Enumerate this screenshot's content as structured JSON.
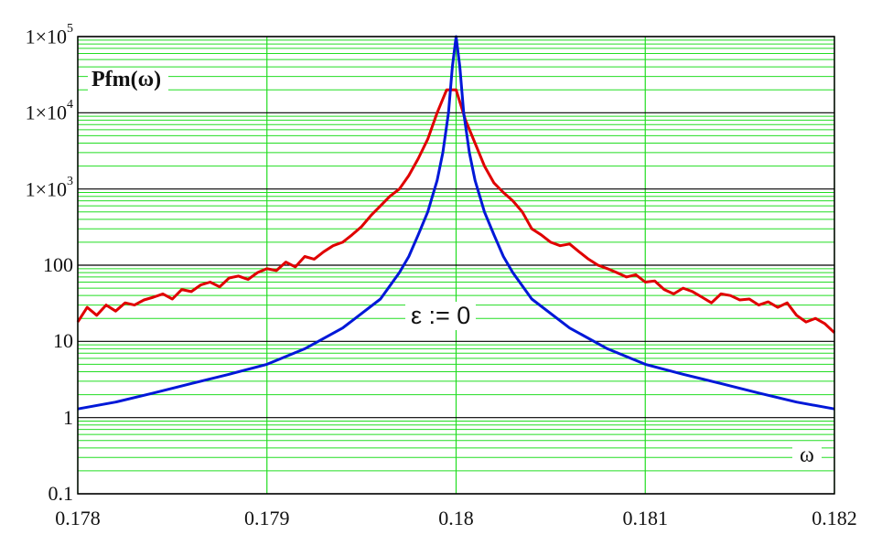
{
  "chart_data": {
    "type": "line",
    "ylabel": "Pfm(ω)",
    "xlabel": "ω",
    "annotation": "ε := 0",
    "yscale": "log",
    "xlim": [
      0.178,
      0.182
    ],
    "ylim": [
      0.1,
      100000
    ],
    "grid": true,
    "x_ticks": [
      "0.178",
      "0.179",
      "0.18",
      "0.181",
      "0.182"
    ],
    "y_ticks": [
      {
        "base": "0.1",
        "exp": ""
      },
      {
        "base": "1",
        "exp": ""
      },
      {
        "base": "10",
        "exp": ""
      },
      {
        "base": "100",
        "exp": ""
      },
      {
        "base": "1×10",
        "exp": "3"
      },
      {
        "base": "1×10",
        "exp": "4"
      },
      {
        "base": "1×10",
        "exp": "5"
      }
    ],
    "colors": {
      "series_red": "#e00000",
      "series_blue": "#0018d8",
      "grid_minor": "#22dd22",
      "grid_major": "#000000"
    },
    "series": [
      {
        "color": "#e00000",
        "x": [
          0.178,
          0.17805,
          0.1781,
          0.17815,
          0.1782,
          0.17825,
          0.1783,
          0.17835,
          0.1784,
          0.17845,
          0.1785,
          0.17855,
          0.1786,
          0.17865,
          0.1787,
          0.17875,
          0.1788,
          0.17885,
          0.1789,
          0.17895,
          0.179,
          0.17905,
          0.1791,
          0.17915,
          0.1792,
          0.17925,
          0.1793,
          0.17935,
          0.1794,
          0.17945,
          0.1795,
          0.17955,
          0.1796,
          0.17965,
          0.1797,
          0.17975,
          0.1798,
          0.17985,
          0.1799,
          0.17995,
          0.18,
          0.18005,
          0.1801,
          0.18015,
          0.1802,
          0.18025,
          0.1803,
          0.18035,
          0.1804,
          0.18045,
          0.1805,
          0.18055,
          0.1806,
          0.18065,
          0.1807,
          0.18075,
          0.1808,
          0.18085,
          0.1809,
          0.18095,
          0.181,
          0.18105,
          0.1811,
          0.18115,
          0.1812,
          0.18125,
          0.1813,
          0.18135,
          0.1814,
          0.18145,
          0.1815,
          0.18155,
          0.1816,
          0.18165,
          0.1817,
          0.18175,
          0.1818,
          0.18185,
          0.1819,
          0.18195,
          0.182
        ],
        "y": [
          18,
          28,
          22,
          30,
          25,
          32,
          30,
          35,
          38,
          42,
          36,
          48,
          45,
          55,
          60,
          52,
          68,
          72,
          65,
          80,
          90,
          85,
          110,
          95,
          130,
          120,
          150,
          180,
          200,
          250,
          320,
          450,
          600,
          800,
          1000,
          1500,
          2500,
          4500,
          10000,
          20000,
          20000,
          8000,
          4000,
          2000,
          1200,
          900,
          700,
          500,
          300,
          250,
          200,
          180,
          190,
          150,
          120,
          100,
          90,
          80,
          70,
          75,
          60,
          62,
          48,
          42,
          50,
          45,
          38,
          32,
          42,
          40,
          35,
          36,
          30,
          33,
          28,
          32,
          22,
          18,
          20,
          17,
          13
        ]
      },
      {
        "color": "#0018d8",
        "x": [
          0.178,
          0.1782,
          0.1784,
          0.1786,
          0.1788,
          0.179,
          0.1792,
          0.1794,
          0.1796,
          0.1797,
          0.17975,
          0.1798,
          0.17985,
          0.1799,
          0.17993,
          0.17996,
          0.17998,
          0.18,
          0.18002,
          0.18004,
          0.18007,
          0.1801,
          0.18015,
          0.1802,
          0.18025,
          0.1803,
          0.1804,
          0.1806,
          0.1808,
          0.181,
          0.1812,
          0.1814,
          0.1816,
          0.1818,
          0.182
        ],
        "y": [
          1.3,
          1.6,
          2.1,
          2.8,
          3.7,
          5,
          8,
          15,
          36,
          80,
          130,
          250,
          500,
          1300,
          3000,
          10000,
          40000,
          100000,
          40000,
          10000,
          3000,
          1300,
          500,
          250,
          130,
          80,
          36,
          15,
          8,
          5,
          3.7,
          2.8,
          2.1,
          1.6,
          1.3
        ]
      }
    ]
  }
}
